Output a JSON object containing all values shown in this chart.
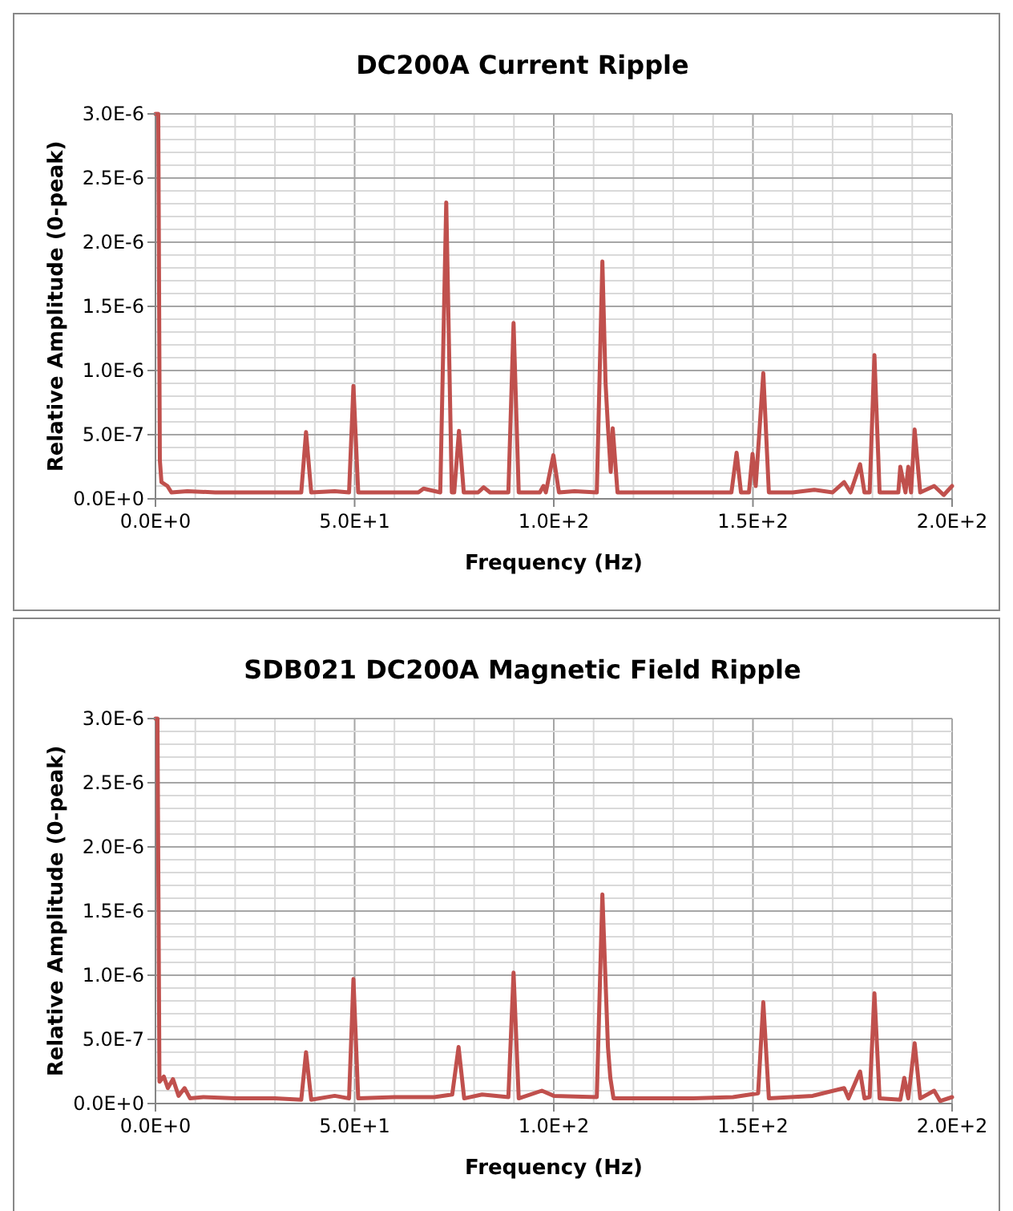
{
  "chart_data": [
    {
      "type": "line",
      "title": "DC200A Current Ripple",
      "xlabel": "Frequency (Hz)",
      "ylabel": "Relative Amplitude (0-peak)",
      "grid": true,
      "marker": "none",
      "line_style": "solid",
      "xlim": [
        0,
        200
      ],
      "ylim": [
        0,
        3e-06
      ],
      "xticks": [
        {
          "value": 0,
          "label": "0.0E+0"
        },
        {
          "value": 10,
          "label": null
        },
        {
          "value": 20,
          "label": null
        },
        {
          "value": 30,
          "label": null
        },
        {
          "value": 40,
          "label": null
        },
        {
          "value": 50,
          "label": "5.0E+1"
        },
        {
          "value": 60,
          "label": null
        },
        {
          "value": 70,
          "label": null
        },
        {
          "value": 80,
          "label": null
        },
        {
          "value": 90,
          "label": null
        },
        {
          "value": 100,
          "label": "1.0E+2"
        },
        {
          "value": 110,
          "label": null
        },
        {
          "value": 120,
          "label": null
        },
        {
          "value": 130,
          "label": null
        },
        {
          "value": 140,
          "label": null
        },
        {
          "value": 150,
          "label": "1.5E+2"
        },
        {
          "value": 160,
          "label": null
        },
        {
          "value": 170,
          "label": null
        },
        {
          "value": 180,
          "label": null
        },
        {
          "value": 190,
          "label": null
        },
        {
          "value": 200,
          "label": "2.0E+2"
        }
      ],
      "yticks": [
        {
          "value": 0,
          "label": "0.0E+0"
        },
        {
          "value": 1e-07,
          "label": null
        },
        {
          "value": 2e-07,
          "label": null
        },
        {
          "value": 3e-07,
          "label": null
        },
        {
          "value": 4e-07,
          "label": null
        },
        {
          "value": 5e-07,
          "label": "5.0E-7"
        },
        {
          "value": 6e-07,
          "label": null
        },
        {
          "value": 7e-07,
          "label": null
        },
        {
          "value": 8e-07,
          "label": null
        },
        {
          "value": 9e-07,
          "label": null
        },
        {
          "value": 1e-06,
          "label": "1.0E-6"
        },
        {
          "value": 1.1e-06,
          "label": null
        },
        {
          "value": 1.2e-06,
          "label": null
        },
        {
          "value": 1.3e-06,
          "label": null
        },
        {
          "value": 1.4e-06,
          "label": null
        },
        {
          "value": 1.5e-06,
          "label": "1.5E-6"
        },
        {
          "value": 1.6e-06,
          "label": null
        },
        {
          "value": 1.7e-06,
          "label": null
        },
        {
          "value": 1.8e-06,
          "label": null
        },
        {
          "value": 1.9e-06,
          "label": null
        },
        {
          "value": 2e-06,
          "label": "2.0E-6"
        },
        {
          "value": 2.1e-06,
          "label": null
        },
        {
          "value": 2.2e-06,
          "label": null
        },
        {
          "value": 2.3e-06,
          "label": null
        },
        {
          "value": 2.4e-06,
          "label": null
        },
        {
          "value": 2.5e-06,
          "label": "2.5E-6"
        },
        {
          "value": 2.6e-06,
          "label": null
        },
        {
          "value": 2.7e-06,
          "label": null
        },
        {
          "value": 2.8e-06,
          "label": null
        },
        {
          "value": 2.9e-06,
          "label": null
        },
        {
          "value": 3e-06,
          "label": "3.0E-6"
        }
      ],
      "series": [
        {
          "color": "#c0504d",
          "x": [
            0,
            0.7,
            1.1,
            1.5,
            3,
            4,
            8,
            15,
            22,
            30,
            36.6,
            37.8,
            39.1,
            45,
            48.6,
            49.7,
            50.9,
            58,
            66,
            67.3,
            71.5,
            73.0,
            74.4,
            75,
            76.2,
            77.4,
            81,
            82.4,
            84,
            88.6,
            89.9,
            91.2,
            96.5,
            97.4,
            98,
            99.9,
            101.3,
            105.2,
            110.8,
            112.2,
            113.0,
            113.6,
            114.3,
            114.8,
            116,
            125,
            135,
            144.6,
            145.9,
            147,
            149,
            149.9,
            150.7,
            152.6,
            154,
            160,
            165.4,
            170,
            172.9,
            174.5,
            176.9,
            178,
            179.3,
            180.5,
            181.8,
            186.5,
            187,
            188.3,
            189,
            189.7,
            190.6,
            192,
            195.5,
            197.9,
            200
          ],
          "values": [
            3e-06,
            3e-06,
            3e-07,
            1.3e-07,
            1e-07,
            5e-08,
            6e-08,
            5e-08,
            5e-08,
            5e-08,
            5e-08,
            5.2e-07,
            5e-08,
            6e-08,
            5e-08,
            8.8e-07,
            5e-08,
            5e-08,
            5e-08,
            8e-08,
            5e-08,
            2.31e-06,
            5e-08,
            5e-08,
            5.3e-07,
            5e-08,
            5e-08,
            9e-08,
            5e-08,
            5e-08,
            1.37e-06,
            5e-08,
            5e-08,
            1e-07,
            5e-08,
            3.4e-07,
            5e-08,
            6e-08,
            5e-08,
            1.85e-06,
            9e-07,
            5.6e-07,
            2.1e-07,
            5.5e-07,
            5e-08,
            5e-08,
            5e-08,
            5e-08,
            3.6e-07,
            5e-08,
            5e-08,
            3.5e-07,
            1e-07,
            9.8e-07,
            5e-08,
            5e-08,
            7e-08,
            5e-08,
            1.3e-07,
            5e-08,
            2.7e-07,
            5e-08,
            5e-08,
            1.12e-06,
            5e-08,
            5e-08,
            2.5e-07,
            5e-08,
            2.5e-07,
            5e-08,
            5.4e-07,
            5e-08,
            1e-07,
            3e-08,
            1e-07
          ]
        }
      ]
    },
    {
      "type": "line",
      "title": "SDB021 DC200A Magnetic Field Ripple",
      "xlabel": "Frequency (Hz)",
      "ylabel": "Relative Amplitude (0-peak)",
      "grid": true,
      "marker": "none",
      "line_style": "solid",
      "xlim": [
        0,
        200
      ],
      "ylim": [
        0,
        3e-06
      ],
      "xticks": [
        {
          "value": 0,
          "label": "0.0E+0"
        },
        {
          "value": 10,
          "label": null
        },
        {
          "value": 20,
          "label": null
        },
        {
          "value": 30,
          "label": null
        },
        {
          "value": 40,
          "label": null
        },
        {
          "value": 50,
          "label": "5.0E+1"
        },
        {
          "value": 60,
          "label": null
        },
        {
          "value": 70,
          "label": null
        },
        {
          "value": 80,
          "label": null
        },
        {
          "value": 90,
          "label": null
        },
        {
          "value": 100,
          "label": "1.0E+2"
        },
        {
          "value": 110,
          "label": null
        },
        {
          "value": 120,
          "label": null
        },
        {
          "value": 130,
          "label": null
        },
        {
          "value": 140,
          "label": null
        },
        {
          "value": 150,
          "label": "1.5E+2"
        },
        {
          "value": 160,
          "label": null
        },
        {
          "value": 170,
          "label": null
        },
        {
          "value": 180,
          "label": null
        },
        {
          "value": 190,
          "label": null
        },
        {
          "value": 200,
          "label": "2.0E+2"
        }
      ],
      "yticks": [
        {
          "value": 0,
          "label": "0.0E+0"
        },
        {
          "value": 1e-07,
          "label": null
        },
        {
          "value": 2e-07,
          "label": null
        },
        {
          "value": 3e-07,
          "label": null
        },
        {
          "value": 4e-07,
          "label": null
        },
        {
          "value": 5e-07,
          "label": "5.0E-7"
        },
        {
          "value": 6e-07,
          "label": null
        },
        {
          "value": 7e-07,
          "label": null
        },
        {
          "value": 8e-07,
          "label": null
        },
        {
          "value": 9e-07,
          "label": null
        },
        {
          "value": 1e-06,
          "label": "1.0E-6"
        },
        {
          "value": 1.1e-06,
          "label": null
        },
        {
          "value": 1.2e-06,
          "label": null
        },
        {
          "value": 1.3e-06,
          "label": null
        },
        {
          "value": 1.4e-06,
          "label": null
        },
        {
          "value": 1.5e-06,
          "label": "1.5E-6"
        },
        {
          "value": 1.6e-06,
          "label": null
        },
        {
          "value": 1.7e-06,
          "label": null
        },
        {
          "value": 1.8e-06,
          "label": null
        },
        {
          "value": 1.9e-06,
          "label": null
        },
        {
          "value": 2e-06,
          "label": "2.0E-6"
        },
        {
          "value": 2.1e-06,
          "label": null
        },
        {
          "value": 2.2e-06,
          "label": null
        },
        {
          "value": 2.3e-06,
          "label": null
        },
        {
          "value": 2.4e-06,
          "label": null
        },
        {
          "value": 2.5e-06,
          "label": "2.5E-6"
        },
        {
          "value": 2.6e-06,
          "label": null
        },
        {
          "value": 2.7e-06,
          "label": null
        },
        {
          "value": 2.8e-06,
          "label": null
        },
        {
          "value": 2.9e-06,
          "label": null
        },
        {
          "value": 3e-06,
          "label": "3.0E-6"
        }
      ],
      "series": [
        {
          "color": "#c0504d",
          "x": [
            0,
            0.5,
            1.0,
            2.1,
            3.1,
            4.4,
            5.8,
            7.3,
            8.7,
            12,
            20,
            30,
            36.6,
            37.8,
            39.1,
            45,
            48.6,
            49.7,
            50.9,
            60,
            70,
            74.5,
            76.1,
            77.5,
            82,
            88.6,
            89.9,
            91.2,
            97,
            100,
            110.8,
            112.2,
            113.6,
            114.2,
            115,
            125,
            135,
            145,
            151.3,
            152.6,
            154,
            165,
            172.9,
            174,
            176.9,
            178,
            179.3,
            180.5,
            181.8,
            187,
            188,
            189,
            190.6,
            192,
            195.5,
            197,
            200
          ],
          "values": [
            3e-06,
            3e-06,
            1.7e-07,
            2.1e-07,
            1.2e-07,
            1.9e-07,
            6e-08,
            1.2e-07,
            4e-08,
            5e-08,
            4e-08,
            4e-08,
            3e-08,
            4e-07,
            3e-08,
            6e-08,
            4e-08,
            9.7e-07,
            4e-08,
            5e-08,
            5e-08,
            7e-08,
            4.4e-07,
            4e-08,
            7e-08,
            5e-08,
            1.02e-06,
            4e-08,
            1e-07,
            6e-08,
            5e-08,
            1.63e-06,
            4.4e-07,
            2e-07,
            4e-08,
            4e-08,
            4e-08,
            5e-08,
            8e-08,
            7.9e-07,
            4e-08,
            6e-08,
            1.2e-07,
            4e-08,
            2.5e-07,
            4e-08,
            5e-08,
            8.6e-07,
            4e-08,
            3e-08,
            2e-07,
            4e-08,
            4.7e-07,
            4e-08,
            1e-07,
            2e-08,
            5e-08
          ]
        }
      ]
    }
  ]
}
